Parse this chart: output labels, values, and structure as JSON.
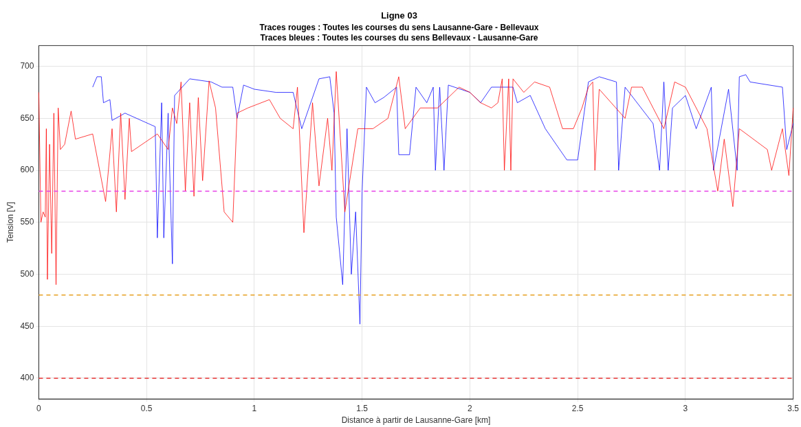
{
  "chart_data": {
    "type": "line",
    "title": "Ligne 03",
    "subtitle": "Traces rouges : Toutes les courses du sens Lausanne-Gare - Bellevaux\nTraces bleues : Toutes les courses du sens Bellevaux - Lausanne-Gare",
    "xlabel": "Distance à partir de Lausanne-Gare [km]",
    "ylabel": "Tension [V]",
    "xlim": [
      0,
      3.5
    ],
    "xticks": [
      0,
      0.5,
      1,
      1.5,
      2,
      2.5,
      3,
      3.5
    ],
    "ylim": [
      380,
      720
    ],
    "yticks": [
      400,
      450,
      500,
      550,
      600,
      650,
      700
    ],
    "grid": true,
    "legend": false,
    "marker": "none",
    "line_style": "solid",
    "series": [
      {
        "color": "#ff0000",
        "x": [
          0,
          0.01,
          0.02,
          0.03,
          0.035,
          0.04,
          0.05,
          0.06,
          0.07,
          0.08,
          0.09,
          0.1,
          0.12,
          0.15,
          0.17,
          0.25,
          0.31,
          0.34,
          0.36,
          0.38,
          0.4,
          0.42,
          0.43,
          0.55,
          0.6,
          0.62,
          0.64,
          0.66,
          0.68,
          0.7,
          0.72,
          0.74,
          0.76,
          0.79,
          0.82,
          0.86,
          0.9,
          0.92,
          0.97,
          1.07,
          1.12,
          1.18,
          1.2,
          1.23,
          1.27,
          1.3,
          1.34,
          1.36,
          1.38,
          1.42,
          1.45,
          1.48,
          1.55,
          1.62,
          1.67,
          1.7,
          1.77,
          1.85,
          1.95,
          2.0,
          2.05,
          2.1,
          2.13,
          2.15,
          2.16,
          2.18,
          2.19,
          2.2,
          2.25,
          2.3,
          2.37,
          2.43,
          2.48,
          2.52,
          2.55,
          2.57,
          2.58,
          2.6,
          2.72,
          2.75,
          2.8,
          2.85,
          2.9,
          2.95,
          3.0,
          3.1,
          3.15,
          3.18,
          3.22,
          3.25,
          3.38,
          3.4,
          3.45,
          3.48,
          3.5
        ],
        "values": [
          675,
          550,
          560,
          555,
          640,
          495,
          625,
          520,
          655,
          490,
          660,
          620,
          625,
          657,
          630,
          635,
          570,
          640,
          560,
          655,
          572,
          650,
          618,
          635,
          620,
          660,
          645,
          685,
          580,
          665,
          575,
          670,
          590,
          686,
          660,
          560,
          550,
          655,
          660,
          668,
          650,
          640,
          680,
          540,
          665,
          585,
          650,
          600,
          695,
          560,
          600,
          640,
          640,
          650,
          690,
          640,
          660,
          660,
          680,
          675,
          665,
          660,
          665,
          688,
          600,
          688,
          600,
          688,
          675,
          685,
          680,
          640,
          640,
          660,
          680,
          685,
          600,
          678,
          650,
          680,
          680,
          660,
          640,
          685,
          680,
          640,
          580,
          630,
          565,
          640,
          620,
          600,
          640,
          595,
          660
        ]
      },
      {
        "color": "#0000ff",
        "x": [
          0.25,
          0.27,
          0.29,
          0.3,
          0.33,
          0.34,
          0.4,
          0.54,
          0.55,
          0.57,
          0.58,
          0.6,
          0.61,
          0.62,
          0.63,
          0.7,
          0.8,
          0.85,
          0.9,
          0.92,
          0.95,
          1.0,
          1.1,
          1.18,
          1.22,
          1.3,
          1.35,
          1.37,
          1.38,
          1.41,
          1.43,
          1.45,
          1.47,
          1.49,
          1.5,
          1.52,
          1.56,
          1.6,
          1.66,
          1.67,
          1.72,
          1.75,
          1.8,
          1.83,
          1.84,
          1.86,
          1.88,
          1.9,
          2.0,
          2.05,
          2.1,
          2.2,
          2.22,
          2.28,
          2.35,
          2.45,
          2.5,
          2.55,
          2.6,
          2.68,
          2.69,
          2.72,
          2.85,
          2.88,
          2.9,
          2.92,
          2.94,
          3.0,
          3.05,
          3.12,
          3.13,
          3.2,
          3.24,
          3.25,
          3.28,
          3.3,
          3.45,
          3.47,
          3.5
        ],
        "values": [
          680,
          690,
          690,
          665,
          668,
          648,
          655,
          642,
          535,
          665,
          535,
          655,
          580,
          510,
          672,
          688,
          685,
          680,
          680,
          650,
          682,
          678,
          675,
          675,
          640,
          688,
          690,
          655,
          555,
          490,
          640,
          500,
          560,
          452,
          580,
          680,
          665,
          670,
          680,
          615,
          615,
          680,
          665,
          680,
          600,
          680,
          600,
          682,
          675,
          665,
          680,
          680,
          665,
          672,
          640,
          610,
          610,
          685,
          690,
          685,
          600,
          680,
          645,
          600,
          685,
          600,
          660,
          672,
          640,
          680,
          600,
          678,
          600,
          690,
          692,
          685,
          680,
          620,
          645
        ]
      }
    ],
    "ref_lines": [
      {
        "axis": "y",
        "value": 580,
        "color": "#e63fe6",
        "line_style": "dashed"
      },
      {
        "axis": "y",
        "value": 480,
        "color": "#e6a020",
        "line_style": "dashed"
      },
      {
        "axis": "y",
        "value": 400,
        "color": "#e63232",
        "line_style": "dashed"
      }
    ]
  }
}
